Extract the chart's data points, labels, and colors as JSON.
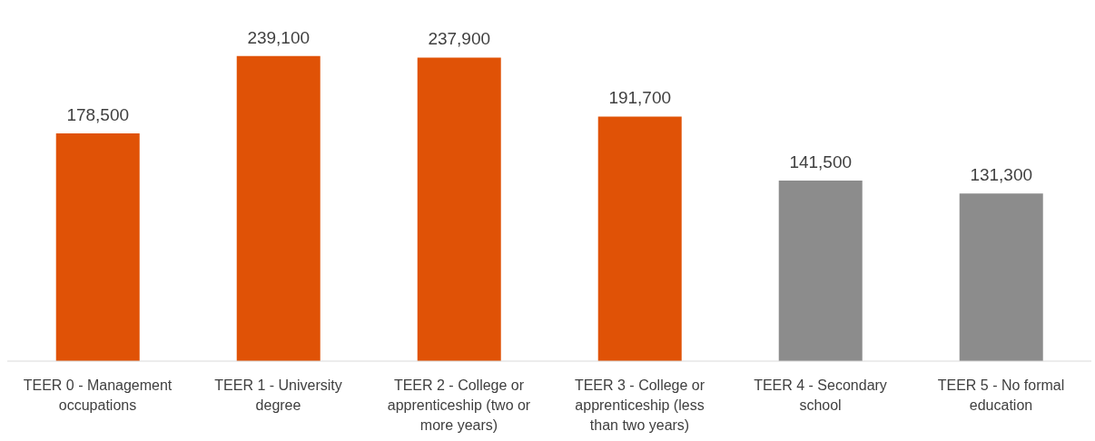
{
  "chart_data": {
    "type": "bar",
    "categories": [
      "TEER 0 - Management occupations",
      "TEER 1 - University degree",
      "TEER 2 - College or apprenticeship (two or more years)",
      "TEER 3 - College or apprenticeship (less than two years)",
      "TEER 4 - Secondary school",
      "TEER 5 - No formal education"
    ],
    "values": [
      178500,
      239100,
      237900,
      191700,
      141500,
      131300
    ],
    "colors": [
      "#e05206",
      "#e05206",
      "#e05206",
      "#e05206",
      "#8c8c8c",
      "#8c8c8c"
    ],
    "value_labels": [
      "178,500",
      "239,100",
      "237,900",
      "191,700",
      "141,500",
      "131,300"
    ],
    "grid": false,
    "legend": false
  }
}
